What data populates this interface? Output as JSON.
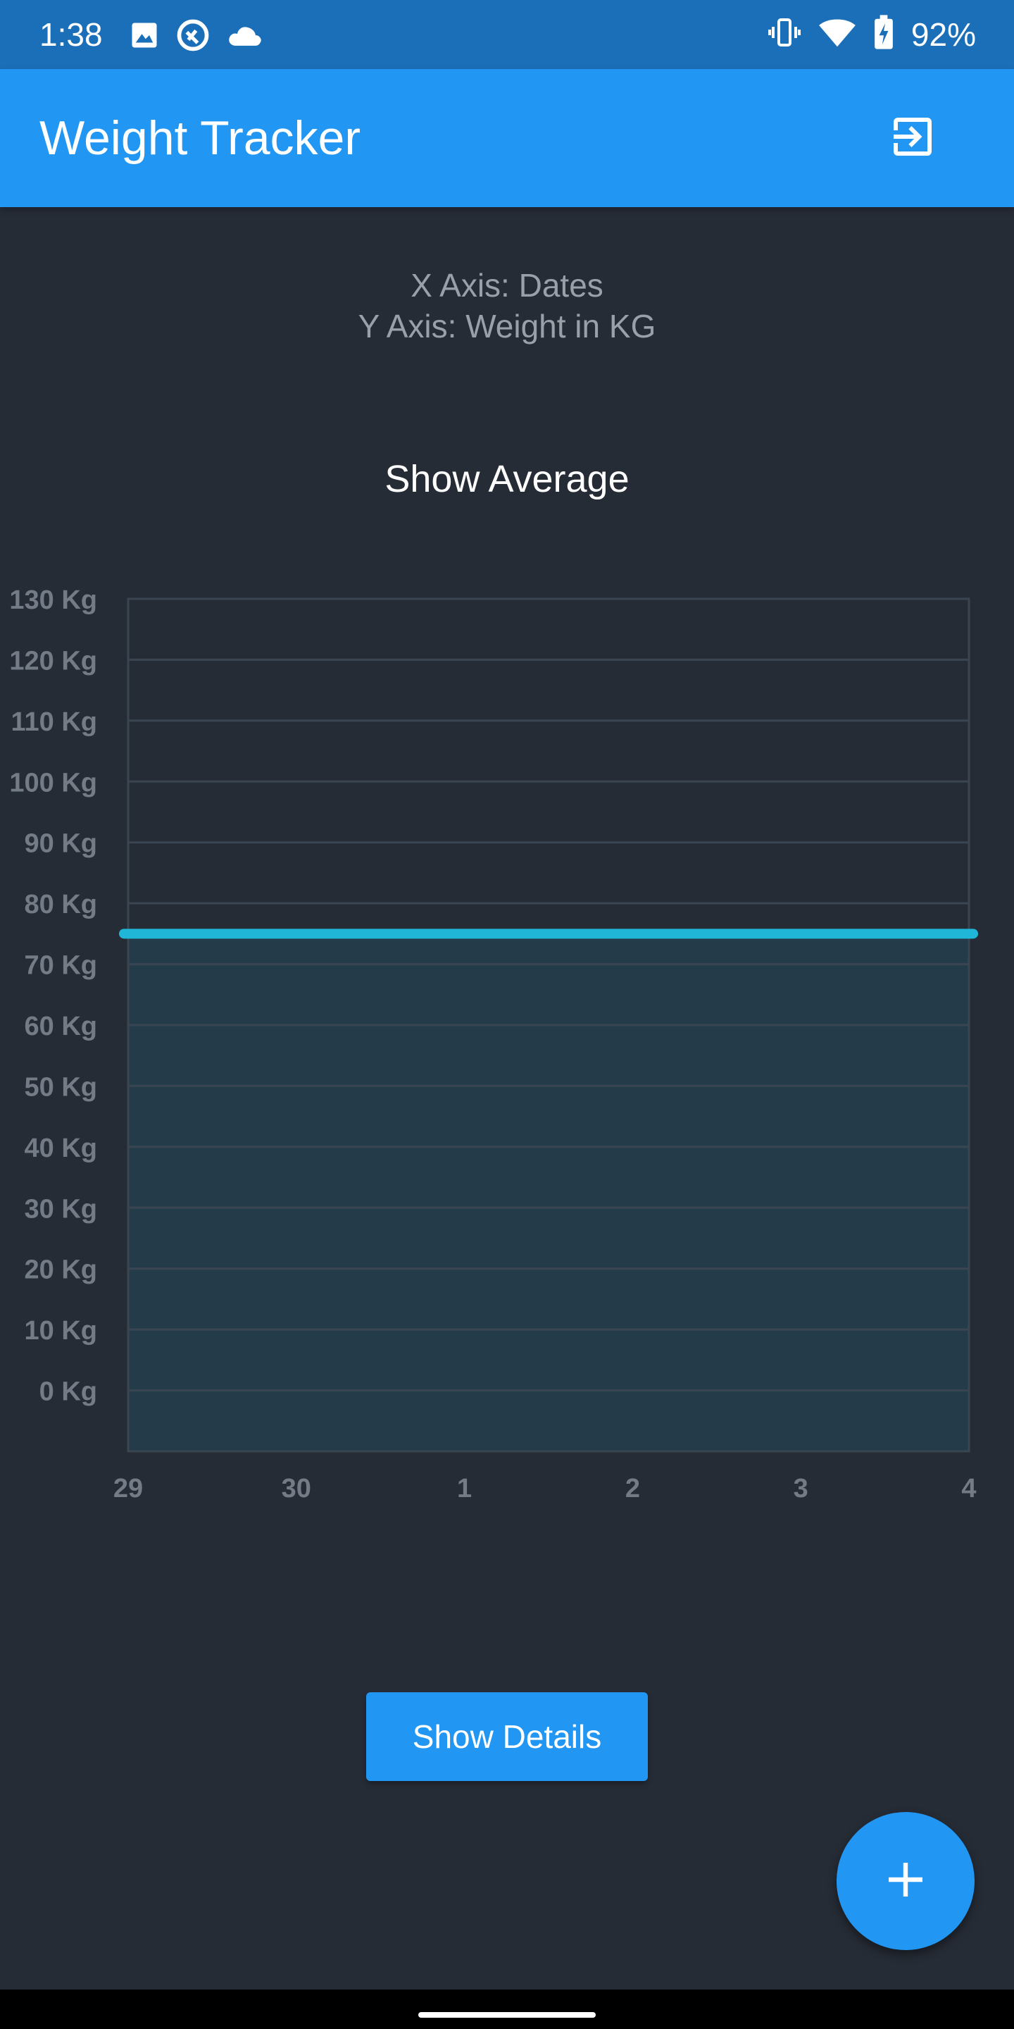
{
  "status_bar": {
    "time": "1:38",
    "left_icons": [
      "image-icon",
      "data-saver-icon",
      "cloud-icon"
    ],
    "right_icons": [
      "vibrate-icon",
      "wifi-icon",
      "battery-charging-icon"
    ],
    "battery": "92%"
  },
  "app_bar": {
    "title": "Weight Tracker",
    "action_icon": "logout-icon"
  },
  "axis_info": {
    "x_line": "X Axis: Dates",
    "y_line": "Y Axis: Weight in KG"
  },
  "show_average_label": "Show Average",
  "show_details_label": "Show Details",
  "fab_icon": "add-icon",
  "colors": {
    "primary": "#2196F3",
    "status_bar": "#1B6FB8",
    "background": "#262C36",
    "line": "#1FB6D8",
    "area_fill": "#243C4A",
    "grid": "#3A4552",
    "tick_label": "#737B86"
  },
  "chart_data": {
    "type": "area",
    "title": "",
    "xlabel": "",
    "ylabel": "",
    "x": [
      "29",
      "30",
      "1",
      "2",
      "3",
      "4"
    ],
    "y_ticks": [
      "130 Kg",
      "120 Kg",
      "110 Kg",
      "100 Kg",
      "90 Kg",
      "80 Kg",
      "70 Kg",
      "60 Kg",
      "50 Kg",
      "40 Kg",
      "30 Kg",
      "20 Kg",
      "10 Kg",
      "0 Kg"
    ],
    "ylim": [
      -10,
      130
    ],
    "grid": true,
    "series": [
      {
        "values": [
          75,
          75,
          75,
          75,
          75,
          75
        ]
      }
    ]
  }
}
